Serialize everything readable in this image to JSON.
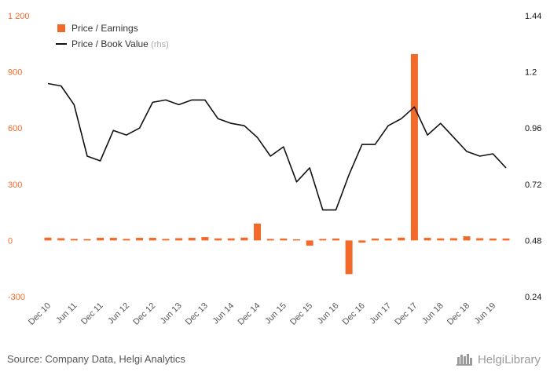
{
  "chart_data": {
    "type": "bar+line",
    "categories": [
      "Dec 10",
      "Mar 11",
      "Jun 11",
      "Sep 11",
      "Dec 11",
      "Mar 12",
      "Jun 12",
      "Sep 12",
      "Dec 12",
      "Mar 13",
      "Jun 13",
      "Sep 13",
      "Dec 13",
      "Mar 14",
      "Jun 14",
      "Sep 14",
      "Dec 14",
      "Mar 15",
      "Jun 15",
      "Sep 15",
      "Dec 15",
      "Mar 16",
      "Jun 16",
      "Sep 16",
      "Dec 16",
      "Mar 17",
      "Jun 17",
      "Sep 17",
      "Dec 17",
      "Mar 18",
      "Jun 18",
      "Sep 18",
      "Dec 18",
      "Mar 19",
      "Jun 19",
      "Sep 19"
    ],
    "x_tick_labels": [
      "Dec 10",
      "Jun 11",
      "Dec 11",
      "Jun 12",
      "Dec 12",
      "Jun 13",
      "Dec 13",
      "Jun 14",
      "Dec 14",
      "Jun 15",
      "Dec 15",
      "Jun 16",
      "Dec 16",
      "Jun 17",
      "Dec 17",
      "Jun 18",
      "Dec 18",
      "Jun 19"
    ],
    "series": [
      {
        "name": "Price / Earnings",
        "axis": "left",
        "kind": "bar",
        "color": "#f26a2a",
        "values": [
          15,
          12,
          8,
          7,
          14,
          14,
          8,
          14,
          14,
          8,
          12,
          14,
          18,
          11,
          11,
          15,
          90,
          8,
          10,
          6,
          -28,
          8,
          10,
          -180,
          -12,
          10,
          10,
          15,
          995,
          14,
          11,
          12,
          22,
          12,
          10,
          10
        ]
      },
      {
        "name": "Price / Book Value",
        "name_suffix": "(rhs)",
        "axis": "right",
        "kind": "line",
        "color": "#111111",
        "values": [
          1.15,
          1.14,
          1.06,
          0.84,
          0.82,
          0.95,
          0.93,
          0.96,
          1.07,
          1.08,
          1.06,
          1.08,
          1.08,
          1.0,
          0.98,
          0.97,
          0.92,
          0.84,
          0.88,
          0.73,
          0.79,
          0.61,
          0.61,
          0.76,
          0.89,
          0.89,
          0.97,
          1.0,
          1.05,
          0.93,
          0.98,
          0.92,
          0.86,
          0.84,
          0.85,
          0.79
        ]
      }
    ],
    "y_left": {
      "ticks": [
        "-300",
        "0",
        "300",
        "600",
        "900",
        "1 200"
      ],
      "min": -300,
      "max": 1200,
      "color": "#f26a2a"
    },
    "y_right": {
      "ticks": [
        "0.24",
        "0.48",
        "0.72",
        "0.96",
        "1.2",
        "1.44"
      ],
      "min": 0.24,
      "max": 1.44,
      "color": "#111111"
    },
    "legend": {
      "placement": "top-left"
    },
    "grid": false
  },
  "legend": {
    "pe_label": "Price / Earnings",
    "pb_label": "Price / Book Value",
    "pb_suffix": "(rhs)"
  },
  "footer": {
    "source": "Source: Company Data, Helgi Analytics",
    "logo_text": "HelgiLibrary"
  }
}
